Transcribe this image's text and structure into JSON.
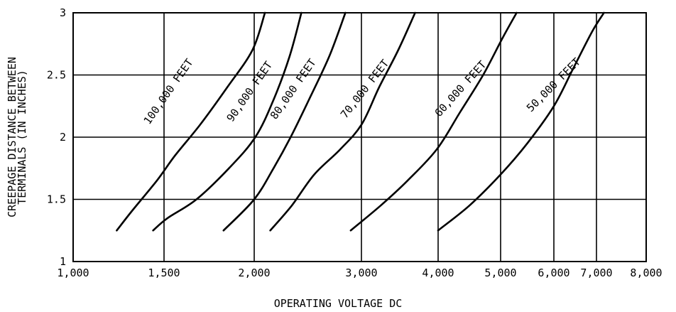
{
  "chart_data": {
    "type": "line",
    "xlabel": "OPERATING VOLTAGE DC",
    "ylabel_lines": [
      "CREEPAGE DISTANCE BETWEEN",
      "TERMINALS (IN INCHES)"
    ],
    "x_ticks": [
      {
        "value": 1000,
        "label": "1,000"
      },
      {
        "value": 1500,
        "label": "1,500"
      },
      {
        "value": 2000,
        "label": "2,000"
      },
      {
        "value": 3000,
        "label": "3,000"
      },
      {
        "value": 4000,
        "label": "4,000"
      },
      {
        "value": 5000,
        "label": "5,000"
      },
      {
        "value": 6000,
        "label": "6,000"
      },
      {
        "value": 7000,
        "label": "7,000"
      },
      {
        "value": 8000,
        "label": "8,000"
      }
    ],
    "y_ticks": [
      {
        "value": 1,
        "label": "1"
      },
      {
        "value": 1.5,
        "label": "1.5"
      },
      {
        "value": 2,
        "label": "2"
      },
      {
        "value": 2.5,
        "label": "2.5"
      },
      {
        "value": 3,
        "label": "3"
      }
    ],
    "ylim": [
      1,
      3
    ],
    "grid": true,
    "series": [
      {
        "name": "100,000 FEET",
        "points": [
          [
            1240,
            1.25
          ],
          [
            1320,
            1.4
          ],
          [
            1460,
            1.65
          ],
          [
            1560,
            1.85
          ],
          [
            1700,
            2.1
          ],
          [
            1850,
            2.4
          ],
          [
            1990,
            2.7
          ],
          [
            2100,
            3.0
          ]
        ]
      },
      {
        "name": "90,000 FEET",
        "points": [
          [
            1440,
            1.25
          ],
          [
            1520,
            1.35
          ],
          [
            1680,
            1.5
          ],
          [
            1860,
            1.75
          ],
          [
            2010,
            2.0
          ],
          [
            2180,
            2.3
          ],
          [
            2330,
            2.65
          ],
          [
            2440,
            3.0
          ]
        ]
      },
      {
        "name": "80,000 FEET",
        "points": [
          [
            1830,
            1.25
          ],
          [
            2000,
            1.5
          ],
          [
            2180,
            1.75
          ],
          [
            2340,
            2.0
          ],
          [
            2510,
            2.3
          ],
          [
            2700,
            2.65
          ],
          [
            2850,
            3.0
          ]
        ]
      },
      {
        "name": "70,000 FEET",
        "points": [
          [
            2150,
            1.25
          ],
          [
            2350,
            1.45
          ],
          [
            2560,
            1.7
          ],
          [
            2800,
            1.9
          ],
          [
            3000,
            2.1
          ],
          [
            3230,
            2.4
          ],
          [
            3480,
            2.7
          ],
          [
            3700,
            3.0
          ]
        ]
      },
      {
        "name": "60,000 FEET",
        "points": [
          [
            2900,
            1.25
          ],
          [
            3250,
            1.45
          ],
          [
            3600,
            1.65
          ],
          [
            3980,
            1.9
          ],
          [
            4350,
            2.2
          ],
          [
            4720,
            2.5
          ],
          [
            5040,
            2.8
          ],
          [
            5300,
            3.0
          ]
        ]
      },
      {
        "name": "50,000 FEET",
        "points": [
          [
            4000,
            1.25
          ],
          [
            4500,
            1.45
          ],
          [
            5000,
            1.7
          ],
          [
            5500,
            1.95
          ],
          [
            6000,
            2.25
          ],
          [
            6450,
            2.55
          ],
          [
            6900,
            2.85
          ],
          [
            7150,
            3.0
          ]
        ]
      }
    ],
    "series_labels": [
      {
        "text": "100,000 FEET",
        "x": 1540,
        "y": 2.35,
        "angle": -55
      },
      {
        "text": "90,000 FEET",
        "x": 1990,
        "y": 2.35,
        "angle": -55
      },
      {
        "text": "80,000 FEET",
        "x": 2390,
        "y": 2.37,
        "angle": -55
      },
      {
        "text": "70,000 FEET",
        "x": 3080,
        "y": 2.37,
        "angle": -52
      },
      {
        "text": "60,000 FEET",
        "x": 4400,
        "y": 2.37,
        "angle": -48
      },
      {
        "text": "50,000 FEET",
        "x": 6050,
        "y": 2.4,
        "angle": -45
      }
    ]
  }
}
